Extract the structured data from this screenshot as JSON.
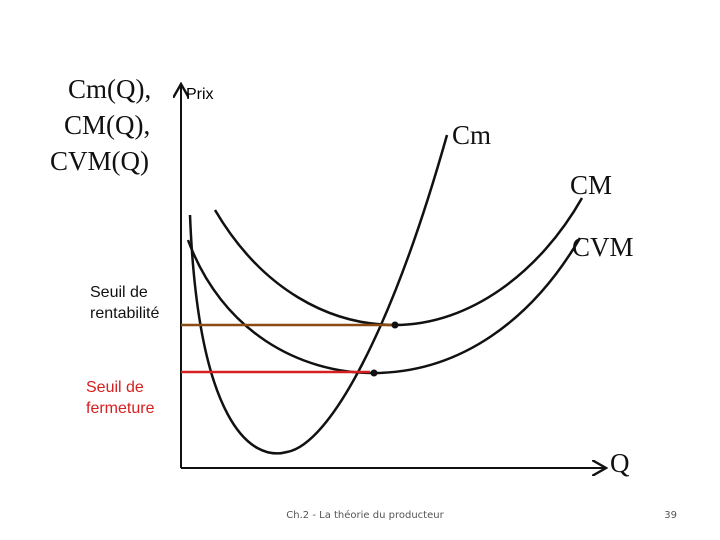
{
  "axis_labels": {
    "y": [
      "Cm(Q),",
      "CM(Q),",
      "CVM(Q)"
    ],
    "y_short": "Prix",
    "x": "Q"
  },
  "curves": {
    "cm": "Cm",
    "cm_average": "CM",
    "cvm": "CVM"
  },
  "thresholds": {
    "rentabilite": [
      "Seuil de",
      "rentabilité"
    ],
    "fermeture": [
      "Seuil de",
      "fermeture"
    ]
  },
  "footer": {
    "text": "Ch.2 - La théorie du producteur",
    "page": "39"
  }
}
